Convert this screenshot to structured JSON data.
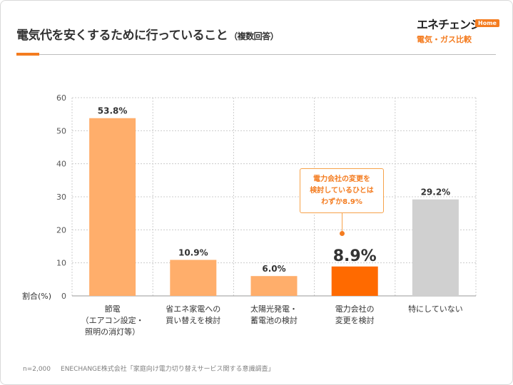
{
  "header": {
    "title": "電気代を安くするために行っていること",
    "subtitle": "（複数回答）"
  },
  "logo": {
    "brand": "エネチェンジ",
    "badge": "Home",
    "tagline": "電気・ガス比較"
  },
  "colors": {
    "accent": "#f47c20",
    "bar_light": "#ffae6b",
    "bar_highlight": "#ff6a00",
    "bar_gray": "#d0d0d0",
    "grid": "#cccccc"
  },
  "callout": {
    "lines": [
      "電力会社の変更を",
      "検討しているひとは",
      "わずか8.9%"
    ]
  },
  "footer": {
    "sample": "n=2,000",
    "source": "ENECHANGE株式会社「家庭向け電力切り替えサービス関する意識調査」"
  },
  "chart_data": {
    "type": "bar",
    "ylabel": "割合(%)",
    "ylim": [
      0,
      60
    ],
    "yticks": [
      0,
      10,
      20,
      30,
      40,
      50,
      60
    ],
    "grid": true,
    "categories": [
      [
        "節電",
        "（エアコン設定・",
        "照明の消灯等）"
      ],
      [
        "省エネ家電への",
        "買い替えを検討"
      ],
      [
        "太陽光発電・",
        "蓄電池の検討"
      ],
      [
        "電力会社の",
        "変更を検討"
      ],
      [
        "特にしていない"
      ]
    ],
    "values": [
      53.8,
      10.9,
      6.0,
      8.9,
      29.2
    ],
    "value_labels": [
      "53.8%",
      "10.9%",
      "6.0%",
      "8.9%",
      "29.2%"
    ],
    "bar_colors": [
      "#ffae6b",
      "#ffae6b",
      "#ffae6b",
      "#ff6a00",
      "#d0d0d0"
    ],
    "highlight_index": 3
  }
}
